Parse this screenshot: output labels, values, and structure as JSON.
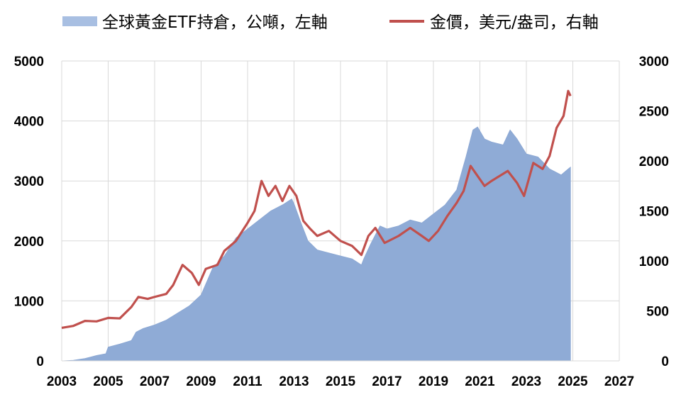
{
  "chart_data": {
    "type": "area",
    "title": "",
    "legend": {
      "placement": "top",
      "entries": [
        {
          "label": "全球黃金ETF持倉，公噸，左軸",
          "swatch": "area"
        },
        {
          "label": "金價，美元/盎司，右軸",
          "swatch": "line"
        }
      ]
    },
    "grid": true,
    "x_axis": {
      "range": [
        2003,
        2027
      ],
      "ticks": [
        "2003",
        "2005",
        "2007",
        "2009",
        "2011",
        "2013",
        "2015",
        "2017",
        "2019",
        "2021",
        "2023",
        "2025",
        "2027"
      ]
    },
    "y_left": {
      "range": [
        0,
        5000
      ],
      "ticks": [
        "0",
        "1000",
        "2000",
        "3000",
        "4000",
        "5000"
      ]
    },
    "y_right": {
      "range": [
        0,
        3000
      ],
      "ticks": [
        "0",
        "500",
        "1000",
        "1500",
        "2000",
        "2500",
        "3000"
      ]
    },
    "series": [
      {
        "name": "全球黃金ETF持倉，公噸，左軸",
        "axis": "left",
        "type": "area",
        "color": "#8fabd6",
        "points": [
          [
            2003.0,
            0
          ],
          [
            2003.5,
            10
          ],
          [
            2004.0,
            40
          ],
          [
            2004.5,
            90
          ],
          [
            2004.9,
            120
          ],
          [
            2005.0,
            230
          ],
          [
            2005.5,
            280
          ],
          [
            2006.0,
            340
          ],
          [
            2006.2,
            480
          ],
          [
            2006.5,
            540
          ],
          [
            2007.0,
            600
          ],
          [
            2007.5,
            680
          ],
          [
            2008.0,
            800
          ],
          [
            2008.5,
            920
          ],
          [
            2009.0,
            1100
          ],
          [
            2009.5,
            1550
          ],
          [
            2010.0,
            1750
          ],
          [
            2010.5,
            2050
          ],
          [
            2011.0,
            2200
          ],
          [
            2011.5,
            2350
          ],
          [
            2012.0,
            2500
          ],
          [
            2012.5,
            2600
          ],
          [
            2012.9,
            2700
          ],
          [
            2013.0,
            2620
          ],
          [
            2013.3,
            2300
          ],
          [
            2013.6,
            2000
          ],
          [
            2014.0,
            1850
          ],
          [
            2014.5,
            1800
          ],
          [
            2015.0,
            1750
          ],
          [
            2015.5,
            1700
          ],
          [
            2015.9,
            1600
          ],
          [
            2016.0,
            1700
          ],
          [
            2016.3,
            1950
          ],
          [
            2016.7,
            2250
          ],
          [
            2017.0,
            2200
          ],
          [
            2017.5,
            2250
          ],
          [
            2018.0,
            2350
          ],
          [
            2018.5,
            2300
          ],
          [
            2019.0,
            2450
          ],
          [
            2019.5,
            2600
          ],
          [
            2020.0,
            2850
          ],
          [
            2020.4,
            3400
          ],
          [
            2020.7,
            3850
          ],
          [
            2020.9,
            3900
          ],
          [
            2021.2,
            3700
          ],
          [
            2021.5,
            3650
          ],
          [
            2022.0,
            3600
          ],
          [
            2022.3,
            3850
          ],
          [
            2022.6,
            3700
          ],
          [
            2023.0,
            3450
          ],
          [
            2023.5,
            3400
          ],
          [
            2024.0,
            3200
          ],
          [
            2024.5,
            3100
          ],
          [
            2024.8,
            3200
          ],
          [
            2024.9,
            3230
          ]
        ]
      },
      {
        "name": "金價，美元/盎司，右軸",
        "axis": "right",
        "type": "line",
        "color": "#c0504d",
        "points": [
          [
            2003.0,
            330
          ],
          [
            2003.5,
            350
          ],
          [
            2004.0,
            400
          ],
          [
            2004.5,
            395
          ],
          [
            2005.0,
            430
          ],
          [
            2005.5,
            425
          ],
          [
            2006.0,
            540
          ],
          [
            2006.3,
            640
          ],
          [
            2006.7,
            620
          ],
          [
            2007.0,
            640
          ],
          [
            2007.5,
            670
          ],
          [
            2007.8,
            760
          ],
          [
            2008.2,
            960
          ],
          [
            2008.6,
            880
          ],
          [
            2008.9,
            760
          ],
          [
            2009.2,
            920
          ],
          [
            2009.7,
            960
          ],
          [
            2010.0,
            1100
          ],
          [
            2010.5,
            1200
          ],
          [
            2011.0,
            1380
          ],
          [
            2011.3,
            1500
          ],
          [
            2011.6,
            1800
          ],
          [
            2011.9,
            1650
          ],
          [
            2012.2,
            1750
          ],
          [
            2012.5,
            1600
          ],
          [
            2012.8,
            1750
          ],
          [
            2013.1,
            1650
          ],
          [
            2013.4,
            1400
          ],
          [
            2013.7,
            1320
          ],
          [
            2014.0,
            1250
          ],
          [
            2014.5,
            1300
          ],
          [
            2015.0,
            1200
          ],
          [
            2015.5,
            1150
          ],
          [
            2015.9,
            1060
          ],
          [
            2016.2,
            1250
          ],
          [
            2016.5,
            1330
          ],
          [
            2016.9,
            1180
          ],
          [
            2017.5,
            1250
          ],
          [
            2018.0,
            1330
          ],
          [
            2018.5,
            1250
          ],
          [
            2018.8,
            1200
          ],
          [
            2019.2,
            1300
          ],
          [
            2019.6,
            1450
          ],
          [
            2020.0,
            1580
          ],
          [
            2020.3,
            1700
          ],
          [
            2020.6,
            1950
          ],
          [
            2020.9,
            1850
          ],
          [
            2021.2,
            1750
          ],
          [
            2021.5,
            1800
          ],
          [
            2022.2,
            1900
          ],
          [
            2022.6,
            1780
          ],
          [
            2022.9,
            1650
          ],
          [
            2023.3,
            1980
          ],
          [
            2023.7,
            1920
          ],
          [
            2024.0,
            2050
          ],
          [
            2024.3,
            2330
          ],
          [
            2024.6,
            2450
          ],
          [
            2024.8,
            2700
          ],
          [
            2024.9,
            2650
          ]
        ]
      }
    ]
  }
}
